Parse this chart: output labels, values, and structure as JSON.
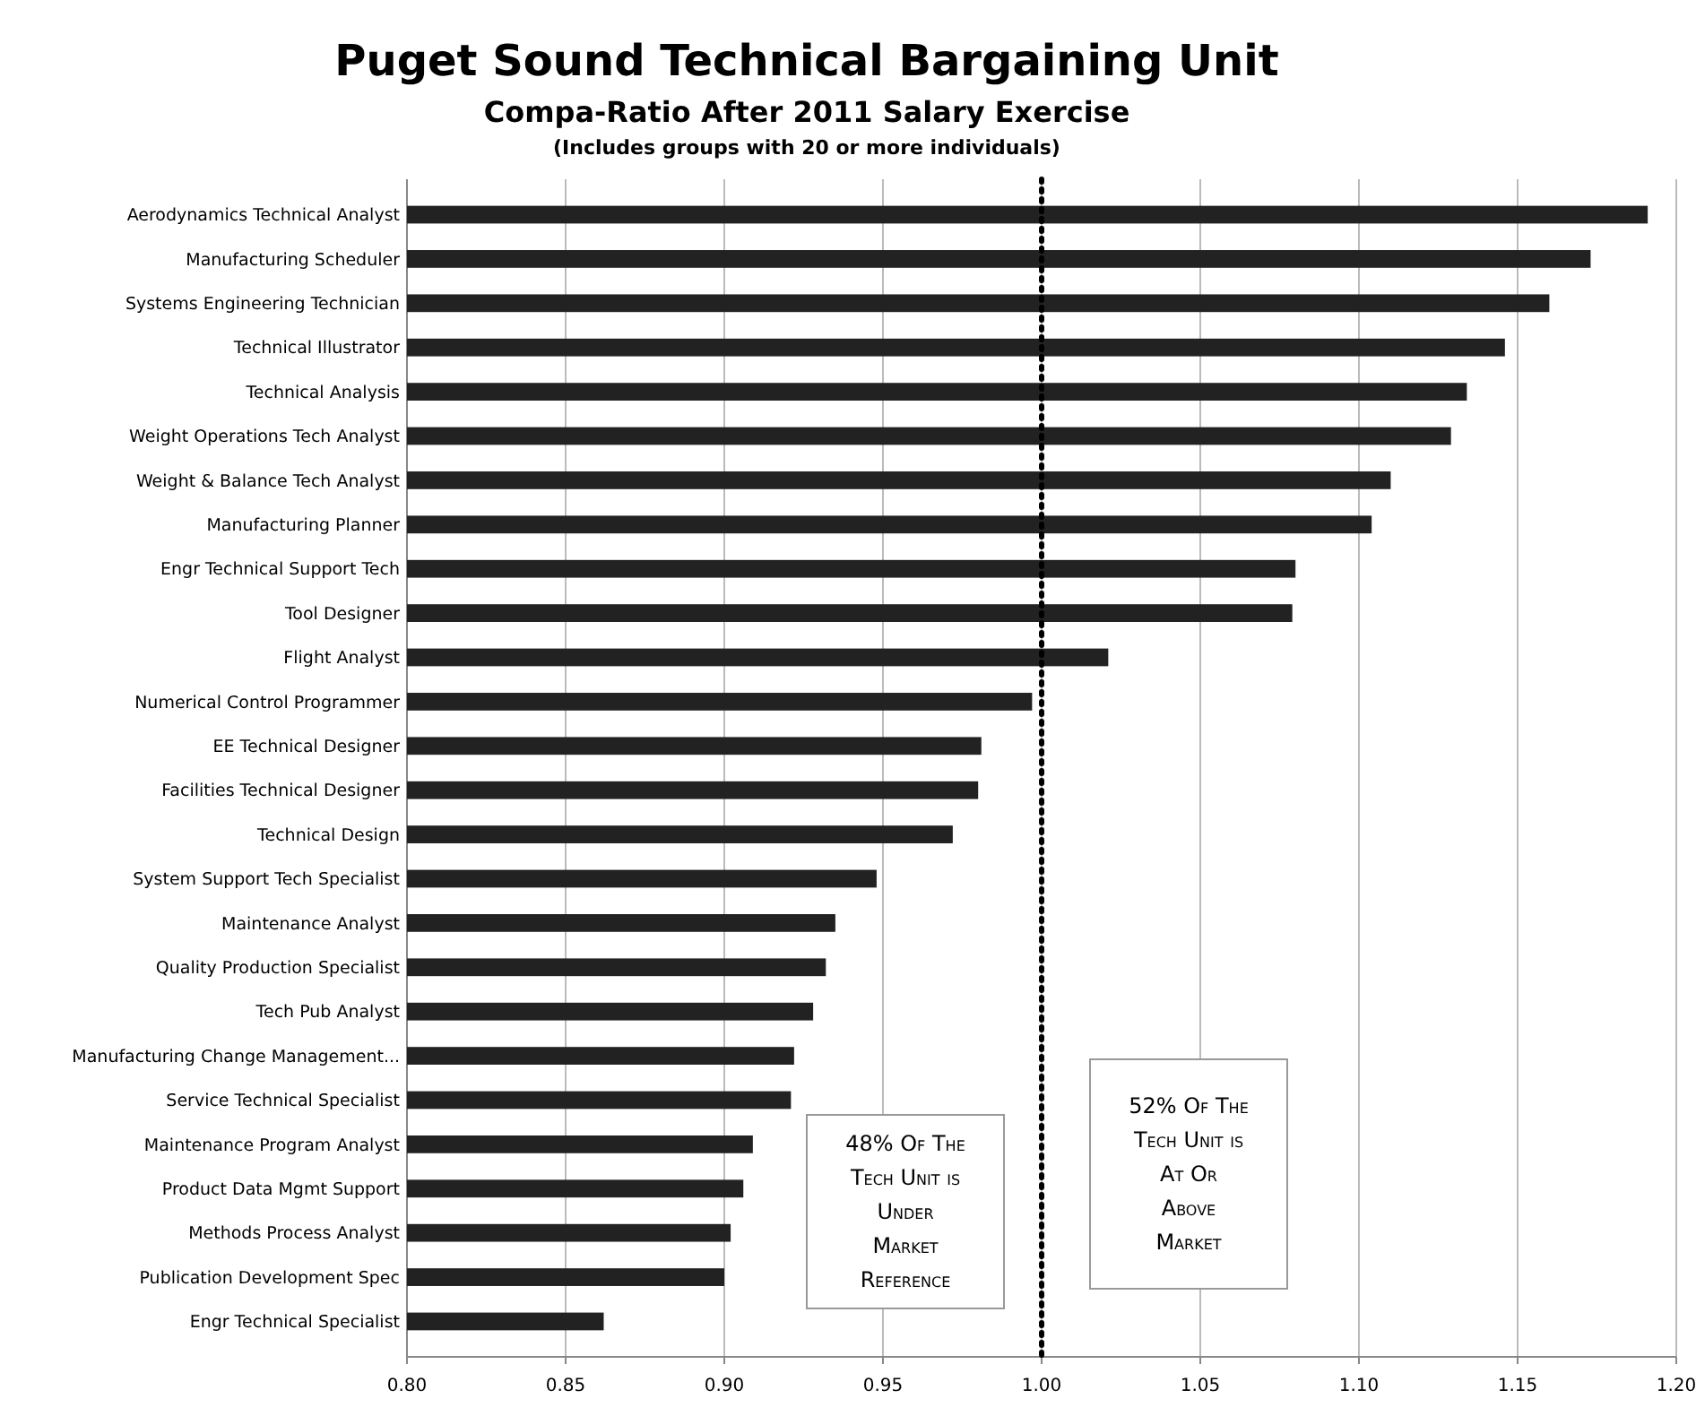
{
  "chart_data": {
    "type": "bar",
    "orientation": "horizontal",
    "title": "Puget Sound Technical Bargaining Unit",
    "subtitle": "Compa-Ratio After 2011 Salary  Exercise\n(Includes groups with 20 or more individuals)",
    "categories": [
      "Aerodynamics Technical Analyst",
      "Manufacturing Scheduler",
      "Systems Engineering Technician",
      "Technical Illustrator",
      "Technical Analysis",
      "Weight Operations Tech Analyst",
      "Weight & Balance Tech Analyst",
      "Manufacturing Planner",
      "Engr Technical Support Tech",
      "Tool Designer",
      "Flight Analyst",
      "Numerical Control Programmer",
      "EE Technical Designer",
      "Facilities Technical Designer",
      "Technical Design",
      "System Support Tech Specialist",
      "Maintenance Analyst",
      "Quality Production Specialist",
      "Tech Pub Analyst",
      "Manufacturing Change Management...",
      "Service Technical Specialist",
      "Maintenance Program Analyst",
      "Product Data Mgmt Support",
      "Methods Process Analyst",
      "Publication Development Spec",
      "Engr Technical Specialist"
    ],
    "values": [
      1.191,
      1.173,
      1.16,
      1.146,
      1.134,
      1.129,
      1.11,
      1.104,
      1.08,
      1.079,
      1.021,
      0.997,
      0.981,
      0.98,
      0.972,
      0.948,
      0.935,
      0.932,
      0.928,
      0.922,
      0.921,
      0.909,
      0.906,
      0.902,
      0.9,
      0.862
    ],
    "color": "#222222",
    "xlim": [
      0.8,
      1.2
    ],
    "xticks": [
      {
        "value": 0.8,
        "label": "0.80"
      },
      {
        "value": 0.85,
        "label": "0.85"
      },
      {
        "value": 0.9,
        "label": "0.90"
      },
      {
        "value": 0.95,
        "label": "0.95"
      },
      {
        "value": 1.0,
        "label": "1.00"
      },
      {
        "value": 1.05,
        "label": "1.05"
      },
      {
        "value": 1.1,
        "label": "1.10"
      },
      {
        "value": 1.15,
        "label": "1.15"
      },
      {
        "value": 1.2,
        "label": "1.20"
      }
    ],
    "grid": "x",
    "ref_lines": [
      {
        "axis": "x",
        "value": 1.0,
        "line_style": "dotted",
        "color": "#000000"
      }
    ],
    "annotations": [
      "48% Of The\nTech Unit is\nUnder\nMarket\nReference",
      "52% Of The\nTech Unit is\nAt Or\nAbove\nMarket"
    ]
  }
}
